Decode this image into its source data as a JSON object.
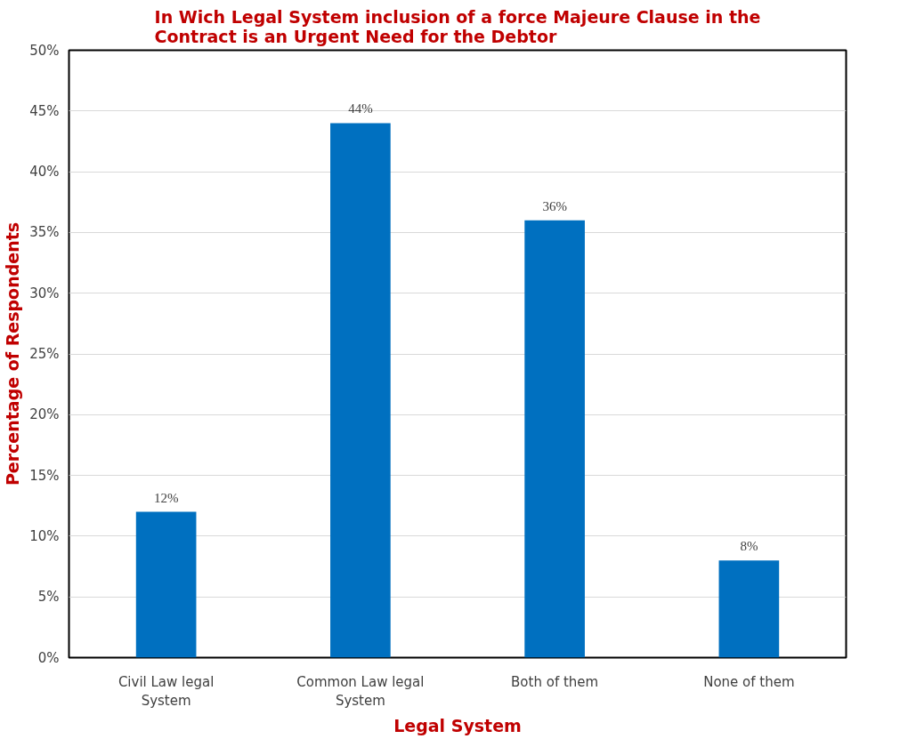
{
  "chart_data": {
    "type": "bar",
    "title": "In Wich Legal System inclusion of a force Majeure Clause in the Contract is an Urgent Need for the Debtor",
    "xlabel": "Legal System",
    "ylabel": "Percentage of Respondents",
    "categories": [
      "Civil Law legal System",
      "Common Law legal System",
      "Both of them",
      "None of them"
    ],
    "values": [
      12,
      44,
      36,
      8
    ],
    "color": "#0070c0",
    "value_labels": [
      "12%",
      "44%",
      "36%",
      "8%"
    ],
    "ylim": [
      0,
      50
    ],
    "yticks": [
      {
        "value": 0,
        "label": "0%"
      },
      {
        "value": 5,
        "label": "5%"
      },
      {
        "value": 10,
        "label": "10%"
      },
      {
        "value": 15,
        "label": "15%"
      },
      {
        "value": 20,
        "label": "20%"
      },
      {
        "value": 25,
        "label": "25%"
      },
      {
        "value": 30,
        "label": "30%"
      },
      {
        "value": 35,
        "label": "35%"
      },
      {
        "value": 40,
        "label": "40%"
      },
      {
        "value": 45,
        "label": "45%"
      },
      {
        "value": 50,
        "label": "50%"
      }
    ],
    "grid": "y"
  }
}
